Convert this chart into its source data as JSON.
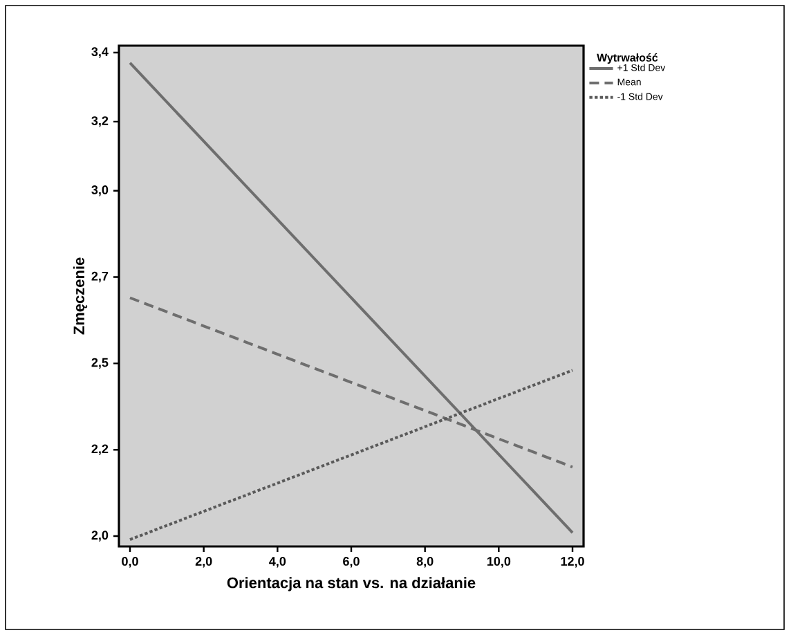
{
  "chart_data": {
    "type": "line",
    "xlabel": "Orientacja na stan vs. na działanie",
    "ylabel": "Zmęczenie",
    "legend_title": "Wytrwałość",
    "x": [
      0,
      12
    ],
    "series": [
      {
        "name": "+1 Std Dev",
        "color": "#6e6e6e",
        "line_style": "solid",
        "values": [
          3.37,
          2.01
        ]
      },
      {
        "name": "Mean",
        "color": "#6e6e6e",
        "line_style": "dashed",
        "values": [
          2.69,
          2.2
        ]
      },
      {
        "name": "-1 Std Dev",
        "color": "#5a5a5a",
        "line_style": "dotted",
        "values": [
          1.99,
          2.48
        ]
      }
    ],
    "xlim": [
      -0.3,
      12.3
    ],
    "ylim": [
      1.97,
      3.42
    ],
    "xticks": [
      {
        "value": 0,
        "label": "0,0"
      },
      {
        "value": 2,
        "label": "2,0"
      },
      {
        "value": 4,
        "label": "4,0"
      },
      {
        "value": 6,
        "label": "6,0"
      },
      {
        "value": 8,
        "label": "8,0"
      },
      {
        "value": 10,
        "label": "10,0"
      },
      {
        "value": 12,
        "label": "12,0"
      }
    ],
    "yticks": [
      {
        "value": 2.0,
        "label": "2,0"
      },
      {
        "value": 2.25,
        "label": "2,2"
      },
      {
        "value": 2.5,
        "label": "2,5"
      },
      {
        "value": 2.75,
        "label": "2,7"
      },
      {
        "value": 3.0,
        "label": "3,0"
      },
      {
        "value": 3.2,
        "label": "3,2"
      },
      {
        "value": 3.4,
        "label": "3,4"
      }
    ],
    "grid": false,
    "legend": "top right",
    "marker": "none"
  }
}
